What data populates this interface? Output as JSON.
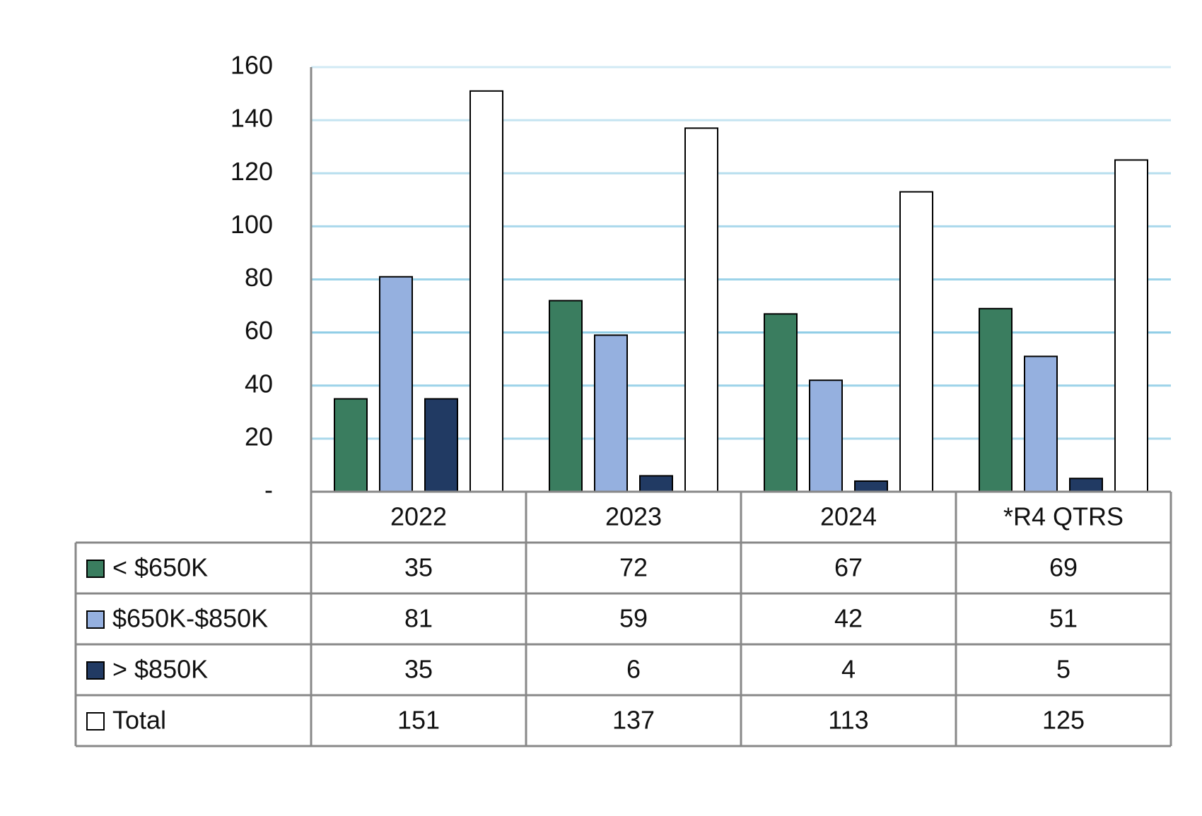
{
  "chart_data": {
    "type": "bar",
    "categories": [
      "2022",
      "2023",
      "2024",
      "*R4 QTRS"
    ],
    "series": [
      {
        "name": "< $650K",
        "color": "#3a7d5f",
        "values": [
          35,
          72,
          67,
          69
        ]
      },
      {
        "name": "$650K-$850K",
        "color": "#95b0df",
        "values": [
          81,
          59,
          42,
          51
        ]
      },
      {
        "name": "> $850K",
        "color": "#213a63",
        "values": [
          35,
          6,
          4,
          5
        ]
      },
      {
        "name": "Total",
        "color": "#ffffff",
        "values": [
          151,
          137,
          113,
          125
        ]
      }
    ],
    "ylim": [
      0,
      160
    ],
    "yticks": [
      {
        "value": 0,
        "label": "-"
      },
      20,
      40,
      60,
      80,
      100,
      120,
      140,
      160
    ],
    "grid": true,
    "grid_color": "#8fcde6"
  }
}
